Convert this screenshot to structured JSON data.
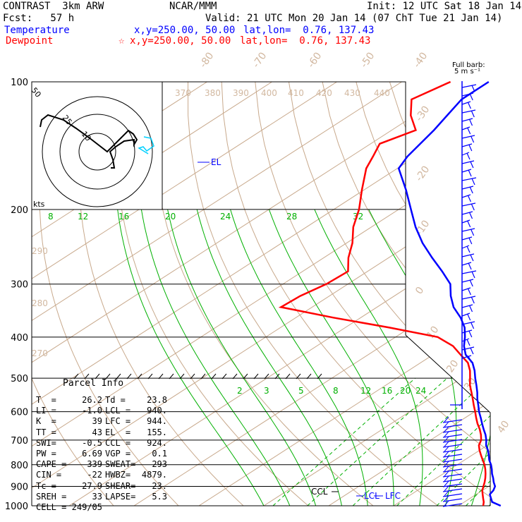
{
  "header": {
    "model_title": "CONTRAST  3km ARW",
    "center": "NCAR/MMM",
    "init": "Init: 12 UTC Sat 18 Jan 14",
    "fcst": "Fcst:   57 h",
    "valid": "Valid: 21 UTC Mon 20 Jan 14 (07 ChT Tue 21 Jan 14)"
  },
  "legend": {
    "temperature": {
      "label": "Temperature",
      "xy": "x,y=250.00, 50.00",
      "latlon": "lat,lon=  0.76, 137.43",
      "color": "#0000ff"
    },
    "dewpoint": {
      "label": "Dewpoint",
      "marker": "☆",
      "xy": "x,y=250.00, 50.00",
      "latlon": "lat,lon=  0.76, 137.43",
      "color": "#ff0000"
    }
  },
  "chart_data": {
    "type": "line",
    "title": "",
    "ylabel_ticks": [
      "100",
      "200",
      "300",
      "400",
      "500",
      "600",
      "700",
      "800",
      "900",
      "1000"
    ],
    "pressure_levels": [
      100,
      200,
      300,
      400,
      500,
      600,
      700,
      800,
      900,
      1000
    ],
    "isotherm_labels": [
      "-80",
      "-70",
      "-60",
      "-50",
      "-40",
      "-30",
      "-20",
      "-10",
      "0",
      "10",
      "20",
      "30",
      "40"
    ],
    "theta_labels": [
      "370",
      "380",
      "390",
      "400",
      "410",
      "420",
      "430",
      "440",
      "290",
      "280",
      "270"
    ],
    "mixing_ratio_labels_upper": [
      "8",
      "12",
      "16",
      "20",
      "24",
      "28",
      "32"
    ],
    "mixing_ratio_labels_lower": [
      "2",
      "3",
      "5",
      "8",
      "12",
      "16",
      "20",
      "24"
    ],
    "series": [
      {
        "name": "Temperature",
        "color": "#0000ff",
        "p": [
          1000,
          980,
          960,
          940,
          920,
          900,
          880,
          860,
          840,
          820,
          800,
          780,
          760,
          740,
          720,
          700,
          680,
          660,
          640,
          620,
          600,
          580,
          560,
          540,
          520,
          500,
          480,
          460,
          440,
          420,
          400,
          380,
          360,
          340,
          320,
          300,
          280,
          260,
          240,
          220,
          200,
          180,
          160,
          150,
          130,
          110,
          100
        ],
        "t": [
          26.5,
          24.3,
          23.2,
          22.1,
          21.7,
          21.0,
          19.8,
          18.7,
          17.5,
          16.4,
          15.2,
          13.8,
          12.6,
          11.3,
          9.8,
          8.6,
          7.2,
          5.6,
          4.0,
          2.4,
          0.7,
          -0.9,
          -2.6,
          -4.2,
          -6.0,
          -7.9,
          -9.8,
          -12.0,
          -15.0,
          -17.3,
          -19.3,
          -21.6,
          -24.6,
          -28.2,
          -31.3,
          -34.2,
          -38.5,
          -43.3,
          -48.3,
          -53.2,
          -58.1,
          -63.5,
          -69.8,
          -71.3,
          -73.5,
          -76.6,
          -76.6
        ]
      },
      {
        "name": "Dewpoint",
        "color": "#ff0000",
        "p": [
          1000,
          980,
          960,
          940,
          920,
          900,
          880,
          860,
          840,
          820,
          800,
          780,
          760,
          740,
          720,
          700,
          680,
          660,
          640,
          620,
          600,
          580,
          560,
          540,
          520,
          500,
          480,
          460,
          440,
          420,
          400,
          380,
          360,
          340,
          320,
          300,
          280,
          260,
          240,
          220,
          200,
          180,
          160,
          150,
          140,
          130,
          120,
          110,
          100
        ],
        "t": [
          23.8,
          23.0,
          22.0,
          21.0,
          20.0,
          19.2,
          18.4,
          17.5,
          16.5,
          15.4,
          14.2,
          12.8,
          11.4,
          10.0,
          8.7,
          7.8,
          6.5,
          5.0,
          3.3,
          1.7,
          0.1,
          -1.6,
          -3.3,
          -5.1,
          -7.0,
          -8.7,
          -10.5,
          -12.7,
          -15.8,
          -19.0,
          -23.5,
          -33.2,
          -44.2,
          -54.8,
          -54.5,
          -53.3,
          -53.0,
          -56.2,
          -59.1,
          -62.8,
          -66.1,
          -70.3,
          -74.8,
          -76.6,
          -78.6,
          -76.3,
          -80.6,
          -84.3,
          -82.5
        ]
      }
    ],
    "levels": [
      "EL",
      "LCL",
      "LFC",
      "CCL"
    ],
    "hodograph": {
      "ring_labels": [
        "50",
        "25",
        "10"
      ],
      "units": "kts"
    },
    "barbs_title": "Full barb:",
    "barbs_units": "5 m s⁻¹"
  },
  "parcel": {
    "title": "Parcel Info",
    "rows": [
      [
        "T  =",
        "26.2",
        "Td =",
        "23.8"
      ],
      [
        "LI =",
        "-1.0",
        "LCL =",
        "940."
      ],
      [
        "K  =",
        "39",
        "LFC =",
        "944."
      ],
      [
        "TT =",
        "43",
        "EL  =",
        "155."
      ],
      [
        "SWI=",
        "-0.5",
        "CCL =",
        "924."
      ],
      [
        "PW =",
        "6.69",
        "VGP =",
        "0.1"
      ],
      [
        "CAPE =",
        "339",
        "SWEAT=",
        "293"
      ],
      [
        "CIN =",
        "-22",
        "HWBZ=",
        "4879."
      ],
      [
        "Tc =",
        "27.9",
        "SHEAR=",
        "23."
      ],
      [
        "SREH =",
        "33",
        "LAPSE=",
        "5.3"
      ],
      [
        "CELL =",
        "249/05",
        "",
        ""
      ]
    ]
  }
}
